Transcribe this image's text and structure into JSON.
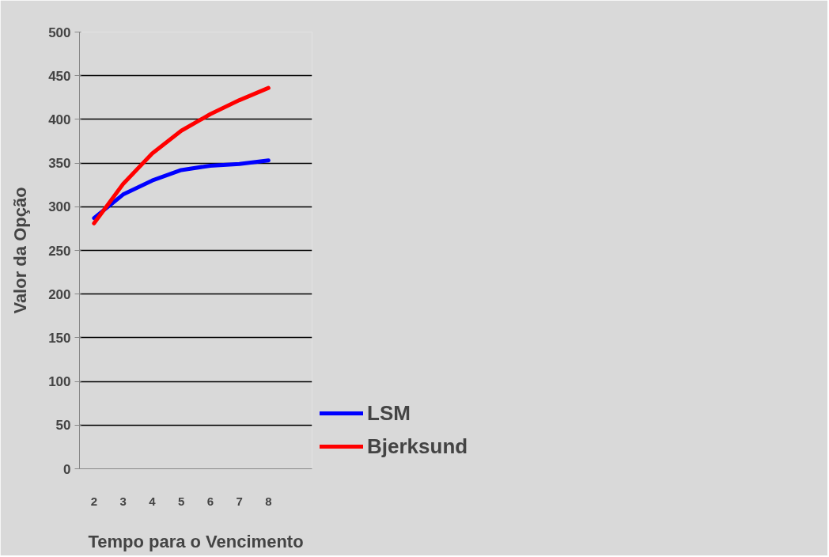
{
  "chart_data": {
    "type": "line",
    "xlabel": "Tempo para o Vencimento",
    "ylabel": "Valor da Opção",
    "x": [
      2,
      3,
      4,
      5,
      6,
      7,
      8
    ],
    "xlim": [
      1.5,
      9.5
    ],
    "xticks": [
      2,
      3,
      4,
      5,
      6,
      7,
      8
    ],
    "ylim": [
      0,
      500
    ],
    "yticks": [
      0,
      50,
      100,
      150,
      200,
      250,
      300,
      350,
      400,
      450,
      500
    ],
    "grid": "y",
    "legend": "bottom right",
    "marker": "none",
    "line_style": "solid",
    "series": [
      {
        "name": "LSM",
        "color": "#0000ff",
        "values": [
          287,
          314,
          330,
          342,
          347,
          349,
          353
        ]
      },
      {
        "name": "Bjerksund",
        "color": "#ff0000",
        "values": [
          281,
          326,
          361,
          387,
          406,
          422,
          436
        ]
      }
    ]
  }
}
